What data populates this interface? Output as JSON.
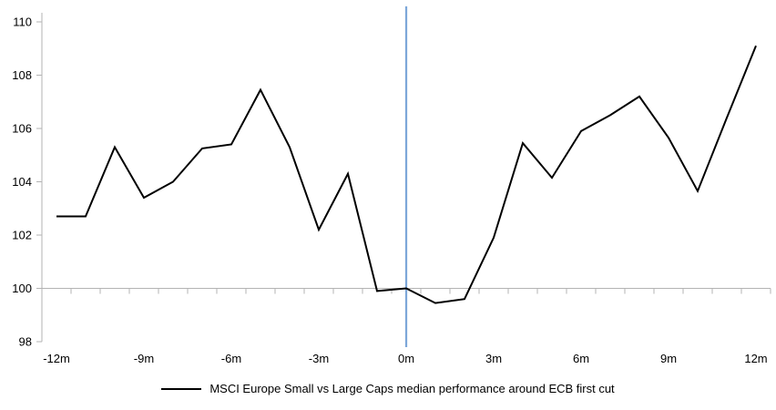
{
  "chart_data": {
    "type": "line",
    "title": "",
    "xlabel": "",
    "ylabel": "",
    "x": [
      -12,
      -11,
      -10,
      -9,
      -8,
      -7,
      -6,
      -5,
      -4,
      -3,
      -2,
      -1,
      0,
      1,
      2,
      3,
      4,
      5,
      6,
      7,
      8,
      9,
      10,
      11,
      12
    ],
    "series": [
      {
        "name": "MSCI Europe Small vs Large Caps median performance around ECB first cut",
        "color": "#000000",
        "values": [
          102.7,
          102.7,
          105.3,
          103.4,
          104.0,
          105.25,
          105.4,
          107.45,
          105.3,
          102.2,
          104.3,
          99.9,
          100.0,
          99.45,
          99.6,
          101.9,
          105.45,
          104.15,
          105.9,
          106.5,
          107.2,
          105.65,
          103.65,
          106.4,
          109.1
        ]
      }
    ],
    "x_range": [
      -12.5,
      12.5
    ],
    "y_range": [
      98,
      110
    ],
    "y_ticks": [
      98,
      100,
      102,
      104,
      106,
      108,
      110
    ],
    "x_major_ticks": [
      -12,
      -9,
      -6,
      -3,
      0,
      3,
      6,
      9,
      12
    ],
    "x_major_labels": [
      "-12m",
      "-9m",
      "-6m",
      "-3m",
      "0m",
      "3m",
      "6m",
      "9m",
      "12m"
    ],
    "x_minor_tick_step": 1,
    "baseline_y": 100,
    "event_line": {
      "x": 0,
      "color": "#7da7d9"
    },
    "grid": "baseline-only",
    "legend_position": "bottom"
  },
  "legend": {
    "label": "MSCI Europe Small vs Large Caps median performance around ECB first cut"
  },
  "colors": {
    "axis": "#b3b3b3",
    "series": "#000000",
    "event_line": "#7da7d9",
    "text": "#000000",
    "background": "#ffffff"
  }
}
